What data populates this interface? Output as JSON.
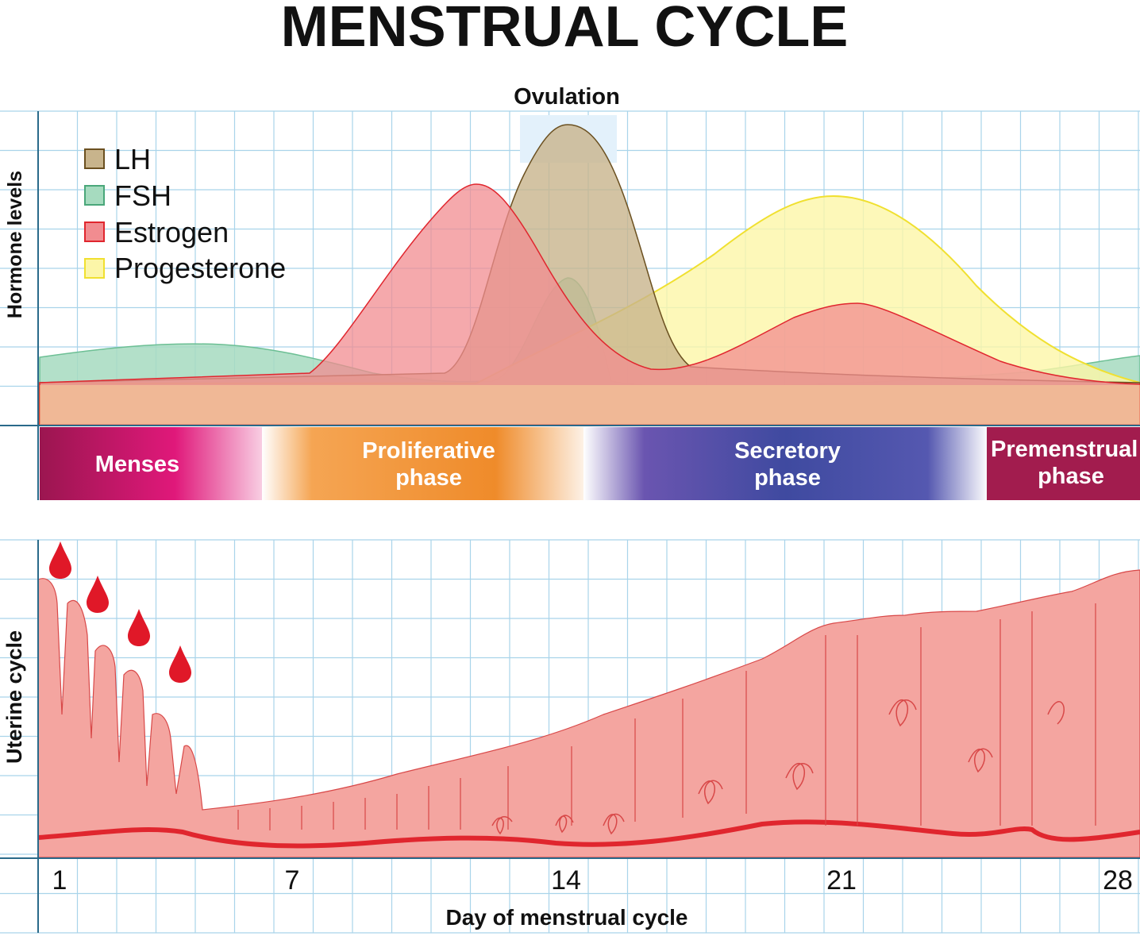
{
  "title": "MENSTRUAL CYCLE",
  "hormone_panel": {
    "ylabel": "Hormone levels",
    "ovulation_label": "Ovulation",
    "legend": [
      {
        "label": "LH",
        "fill": "#c8b48c",
        "stroke": "#6b5020"
      },
      {
        "label": "FSH",
        "fill": "#a6dbbf",
        "stroke": "#4aa77a"
      },
      {
        "label": "Estrogen",
        "fill": "#f18c90",
        "stroke": "#e0262e"
      },
      {
        "label": "Progesterone",
        "fill": "#fcf6a8",
        "stroke": "#f0e030"
      }
    ]
  },
  "phases": [
    {
      "line1": "Menses",
      "line2": "",
      "color": "#a6185a"
    },
    {
      "line1": "Proliferative",
      "line2": "phase",
      "color": "#ef8b2a"
    },
    {
      "line1": "Secretory",
      "line2": "phase",
      "color": "#3f4aa0"
    },
    {
      "line1": "Premenstrual",
      "line2": "phase",
      "color": "#a21c4e"
    }
  ],
  "uterine_panel": {
    "ylabel": "Uterine cycle"
  },
  "x_axis": {
    "label": "Day of menstrual cycle",
    "ticks": [
      "1",
      "7",
      "14",
      "21",
      "28"
    ]
  },
  "colors": {
    "grid": "#a9d4ea",
    "axis": "#2a6a8a",
    "endometrium": "#f4a5a0",
    "endometrium_dark": "#d83a3a",
    "blood": "#e01828",
    "base_band": "#f5d29a"
  }
}
